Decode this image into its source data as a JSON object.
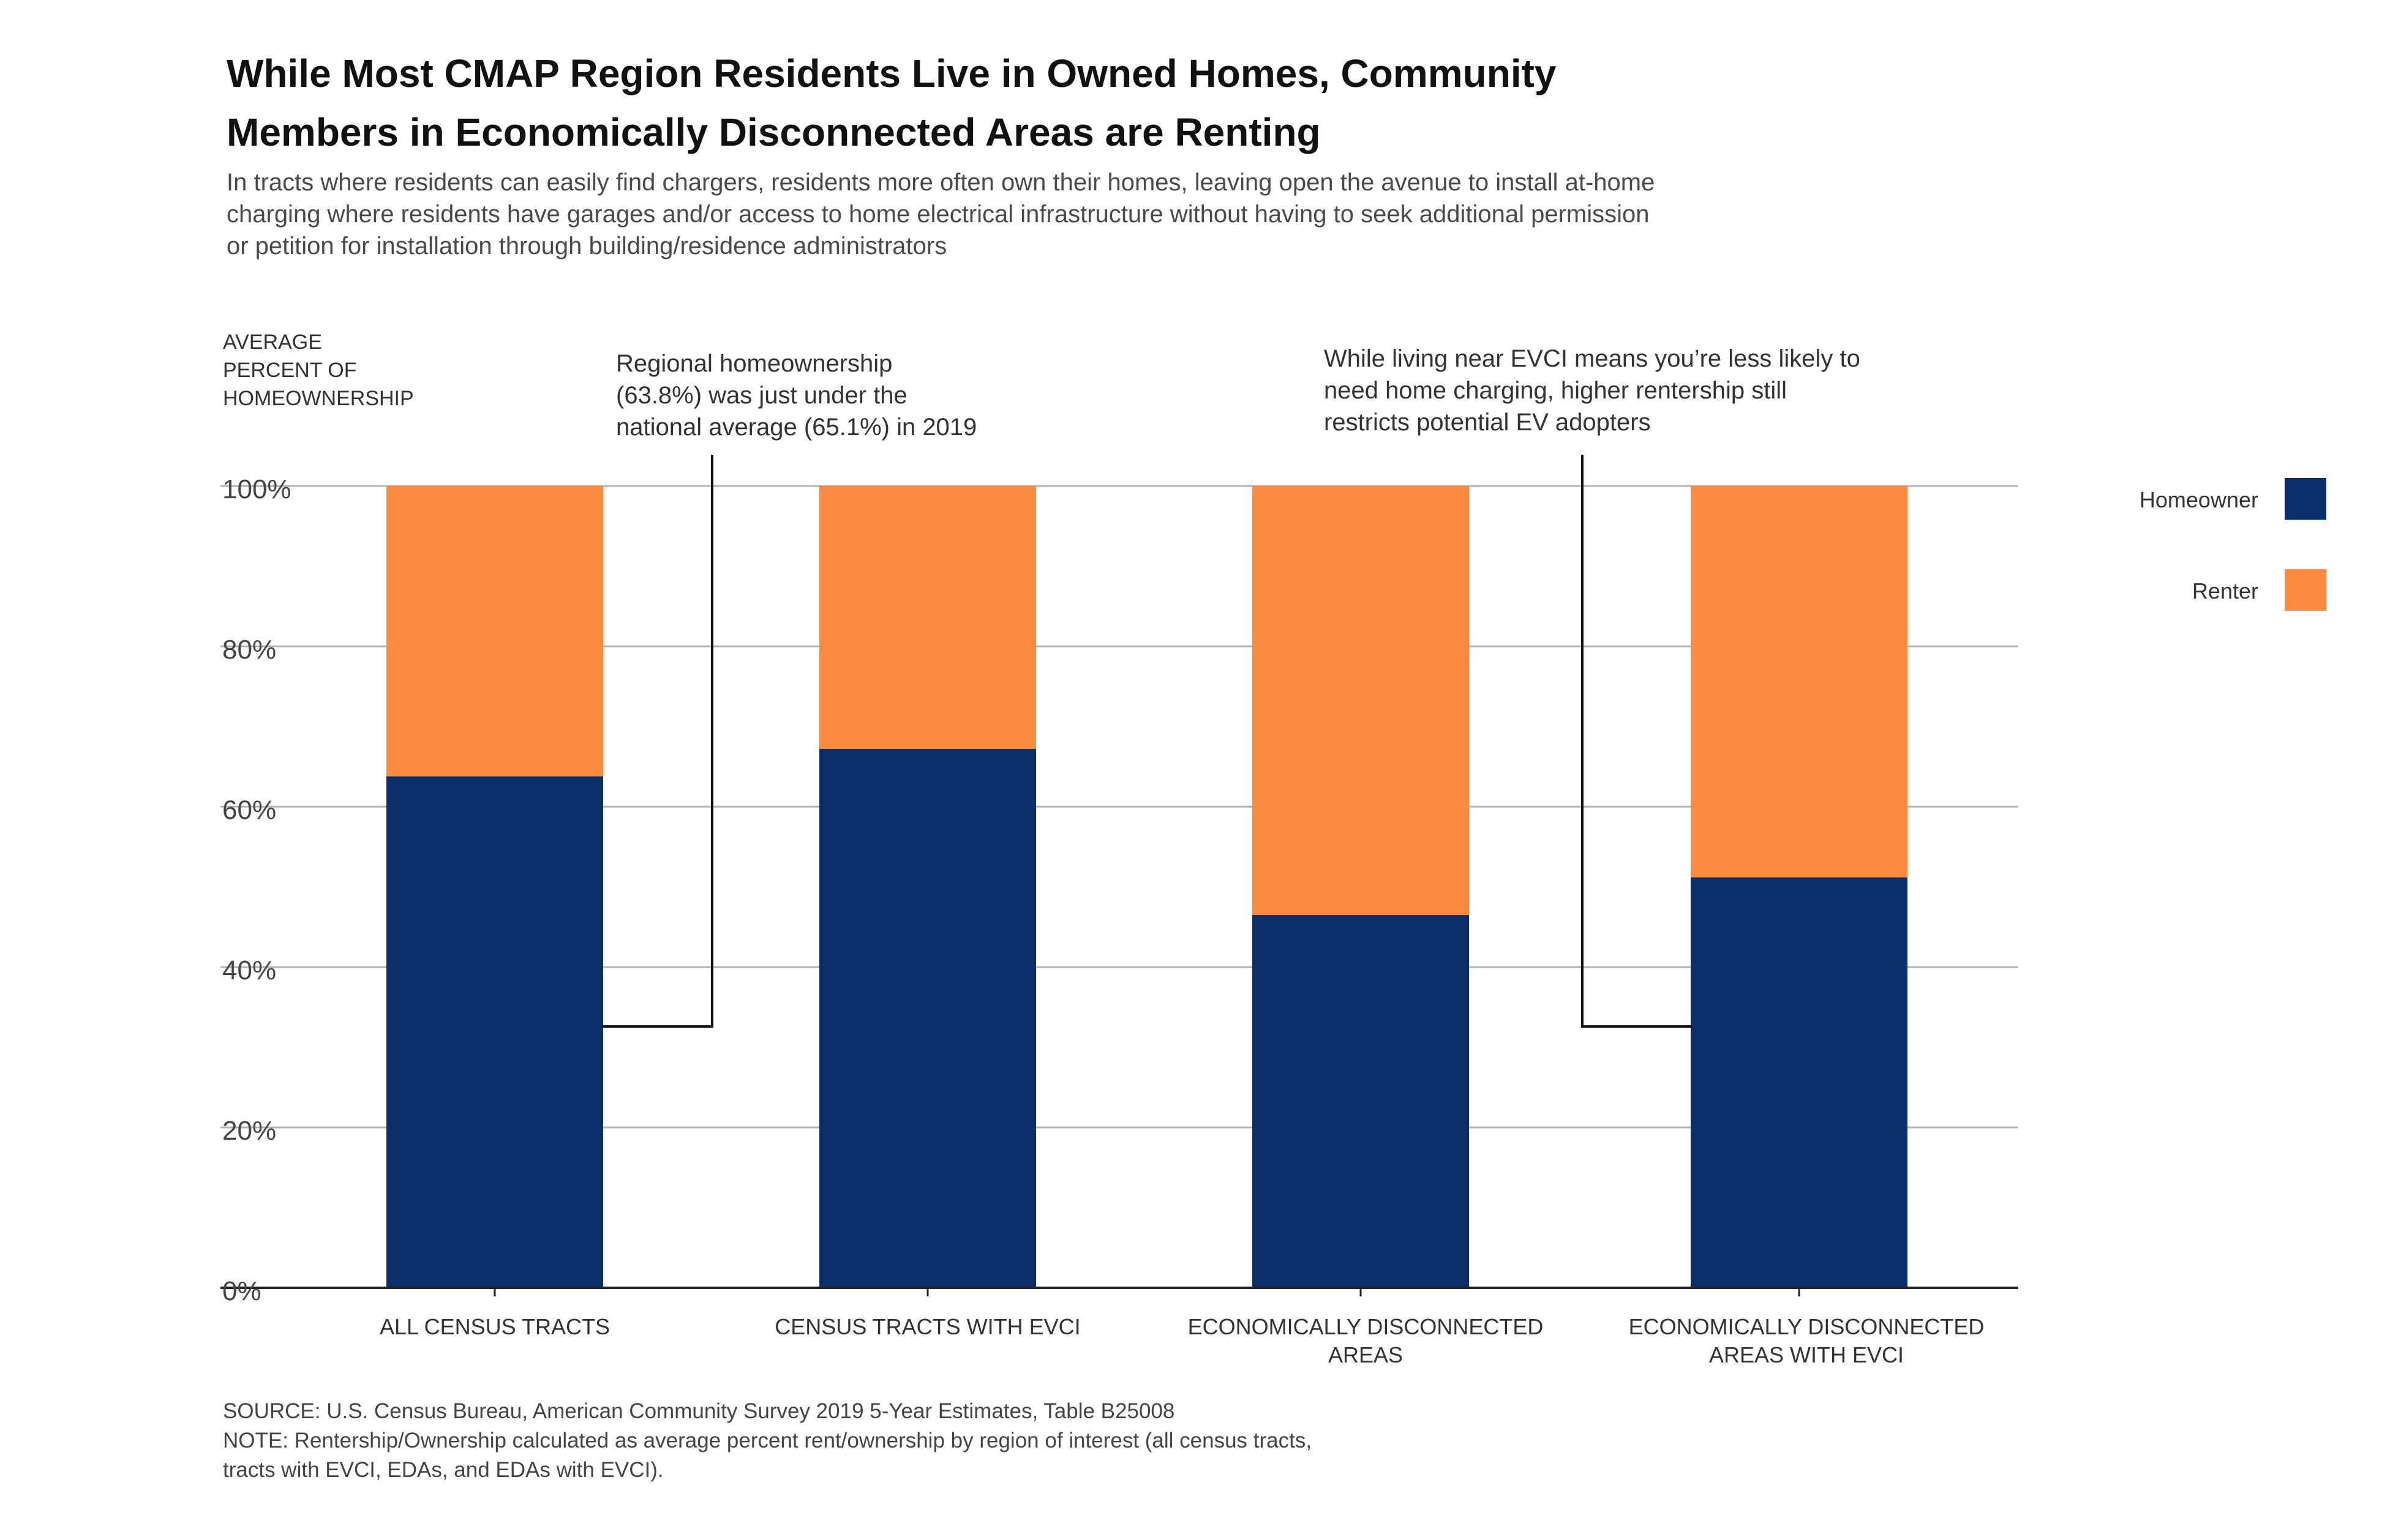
{
  "title_lines": [
    "While Most CMAP Region Residents Live in Owned Homes, Community",
    "Members in Economically Disconnected Areas are Renting"
  ],
  "subtitle_lines": [
    "In tracts where residents can easily find chargers, residents more often own their homes, leaving open the avenue to install at-home",
    "charging where residents have garages and/or access to home electrical infrastructure without having to seek additional permission",
    "or petition for installation through building/residence administrators"
  ],
  "y_axis_label_lines": [
    "AVERAGE",
    "PERCENT OF",
    "HOMEOWNERSHIP"
  ],
  "annotations": [
    {
      "lines": [
        "Regional homeownership",
        "(63.8%)  was just under the",
        "national average (65.1%) in 2019"
      ]
    },
    {
      "lines": [
        "While living near EVCI means you’re less likely to",
        "need home charging, higher rentership still",
        "restricts potential EV adopters"
      ]
    }
  ],
  "footer_lines": [
    "SOURCE: U.S. Census Bureau, American Community Survey 2019 5-Year Estimates, Table B25008",
    "NOTE: Rentership/Ownership calculated as average percent rent/ownership by region of interest (all census tracts,",
    "tracts with EVCI, EDAs, and EDAs with EVCI)."
  ],
  "colors": {
    "homeowner": "#0a2f6b",
    "renter": "#fb8c3f",
    "grid": "#b3b3b3",
    "axis": "#222222"
  },
  "chart_data": {
    "type": "bar",
    "stacked": true,
    "categories": [
      [
        "ALL CENSUS TRACTS"
      ],
      [
        "CENSUS TRACTS WITH EVCI"
      ],
      [
        "ECONOMICALLY DISCONNECTED",
        "AREAS"
      ],
      [
        "ECONOMICALLY DISCONNECTED",
        "AREAS WITH EVCI"
      ]
    ],
    "series": [
      {
        "name": "Homeowner",
        "values": [
          63.8,
          67.2,
          46.5,
          51.2
        ]
      },
      {
        "name": "Renter",
        "values": [
          36.2,
          32.8,
          53.5,
          48.8
        ]
      }
    ],
    "yticks": [
      "0%",
      "20%",
      "40%",
      "60%",
      "80%",
      "100%"
    ],
    "ylim": [
      0,
      100
    ],
    "grid": true,
    "legend_position": "right"
  }
}
